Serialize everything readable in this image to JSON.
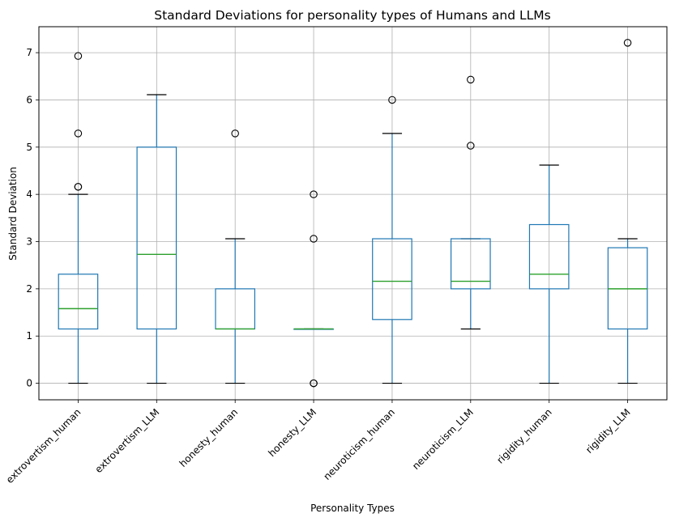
{
  "chart_data": {
    "type": "box",
    "title": "Standard Deviations for personality types of Humans and LLMs",
    "xlabel": "Personality Types",
    "ylabel": "Standard Deviation",
    "ylim": [
      -0.35,
      7.55
    ],
    "yticks": [
      0,
      1,
      2,
      3,
      4,
      5,
      6,
      7
    ],
    "grid": true,
    "colors": {
      "box": "#1f77b4",
      "median": "#2ca02c",
      "whisker_cap": "#000000",
      "grid": "#b0b0b0"
    },
    "categories": [
      "extrovertism_human",
      "extrovertism_LLM",
      "honesty_human",
      "honesty_LLM",
      "neuroticism_human",
      "neuroticism_LLM",
      "rigidity_human",
      "rigidity_LLM"
    ],
    "boxes": [
      {
        "whisker_low": 0,
        "q1": 1.15,
        "median": 1.58,
        "q3": 2.31,
        "whisker_high": 4.0,
        "outliers": [
          4.16,
          4.16,
          5.29,
          6.93
        ]
      },
      {
        "whisker_low": 0,
        "q1": 1.15,
        "median": 2.73,
        "q3": 5.0,
        "whisker_high": 6.11,
        "outliers": []
      },
      {
        "whisker_low": 0,
        "q1": 1.15,
        "median": 1.15,
        "q3": 2.0,
        "whisker_high": 3.06,
        "outliers": [
          5.29
        ]
      },
      {
        "whisker_low": 1.15,
        "q1": 1.15,
        "median": 1.15,
        "q3": 1.15,
        "whisker_high": 1.15,
        "outliers": [
          0,
          0,
          3.06,
          4.0
        ]
      },
      {
        "whisker_low": 0,
        "q1": 1.35,
        "median": 2.16,
        "q3": 3.06,
        "whisker_high": 5.29,
        "outliers": [
          6.0
        ]
      },
      {
        "whisker_low": 1.15,
        "q1": 2.0,
        "median": 2.16,
        "q3": 3.06,
        "whisker_high": 3.06,
        "outliers": [
          5.03,
          6.43
        ]
      },
      {
        "whisker_low": 0,
        "q1": 2.0,
        "median": 2.31,
        "q3": 3.36,
        "whisker_high": 4.62,
        "outliers": []
      },
      {
        "whisker_low": 0,
        "q1": 1.15,
        "median": 2.0,
        "q3": 2.87,
        "whisker_high": 3.06,
        "outliers": [
          7.21
        ]
      }
    ]
  }
}
